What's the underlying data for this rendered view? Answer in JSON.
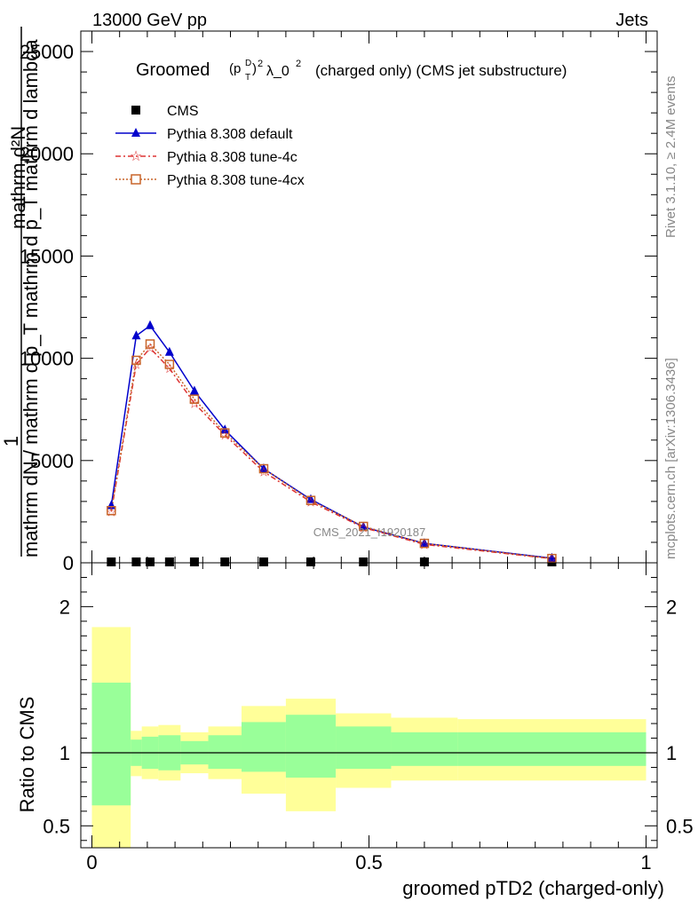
{
  "header": {
    "energy_label": "13000 GeV pp",
    "category_label": "Jets"
  },
  "plot_title": {
    "prefix": "Groomed",
    "mid": "λ_0",
    "suffix": "(charged only) (CMS jet substructure)"
  },
  "side_labels": {
    "rivet": "Rivet 3.1.10, ≥ 2.4M events",
    "mcplots": "mcplots.cern.ch [arXiv:1306.3436]"
  },
  "watermark": "CMS_2021_I1920187",
  "ylabel_main": {
    "line1": "1",
    "line2": "mathrm dN / mathrm d p_T mathrm d p_T mathrm d lambda",
    "line3": "mathrm d²N"
  },
  "ylabel_ratio": "Ratio to CMS",
  "xlabel": "groomed pTD2 (charged-only)",
  "colors": {
    "data": "#000000",
    "default": "#0000cc",
    "tune4c": "#dd3333",
    "tune4cx": "#c8652a",
    "band_inner": "#99ff99",
    "band_outer": "#ffff99"
  },
  "chart_data": [
    {
      "type": "line",
      "panel": "main",
      "xlim": [
        -0.02,
        1.02
      ],
      "ylim": [
        0,
        26000
      ],
      "x_ticks": [
        "0",
        "0.5",
        "1"
      ],
      "y_ticks": [
        "0",
        "5000",
        "10000",
        "15000",
        "20000",
        "25000"
      ],
      "y_tick_values": [
        0,
        5000,
        10000,
        15000,
        20000,
        25000
      ],
      "legend_position": "top-left",
      "series": [
        {
          "name": "CMS",
          "marker": "square",
          "x": [
            0.035,
            0.08,
            0.105,
            0.14,
            0.185,
            0.24,
            0.31,
            0.395,
            0.49,
            0.6,
            0.83
          ],
          "y": [
            0,
            0,
            0,
            0,
            0,
            0,
            0,
            0,
            0,
            0,
            0
          ]
        },
        {
          "name": "Pythia 8.308 default",
          "marker": "triangle",
          "x": [
            0.035,
            0.08,
            0.105,
            0.14,
            0.185,
            0.24,
            0.31,
            0.395,
            0.49,
            0.6,
            0.83
          ],
          "y": [
            2800,
            11100,
            11600,
            10300,
            8400,
            6500,
            4600,
            3100,
            1750,
            950,
            230
          ]
        },
        {
          "name": "Pythia 8.308 tune-4c",
          "marker": "star",
          "x": [
            0.035,
            0.08,
            0.105,
            0.14,
            0.185,
            0.24,
            0.31,
            0.395,
            0.49,
            0.6,
            0.83
          ],
          "y": [
            2500,
            9700,
            10500,
            9500,
            7800,
            6250,
            4450,
            2980,
            1720,
            900,
            200
          ]
        },
        {
          "name": "Pythia 8.308 tune-4cx",
          "marker": "open-square",
          "x": [
            0.035,
            0.08,
            0.105,
            0.14,
            0.185,
            0.24,
            0.31,
            0.395,
            0.49,
            0.6,
            0.83
          ],
          "y": [
            2550,
            9900,
            10700,
            9700,
            8000,
            6350,
            4600,
            3050,
            1780,
            950,
            210
          ]
        }
      ]
    },
    {
      "type": "area",
      "panel": "ratio",
      "xlim": [
        -0.02,
        1.02
      ],
      "ylim": [
        0.35,
        2.3
      ],
      "x_ticks": [
        "0",
        "0.5",
        "1"
      ],
      "y_ticks": [
        "0.5",
        "1",
        "2"
      ],
      "y_tick_values": [
        0.5,
        1,
        2
      ],
      "reference_line": 1,
      "bins": [
        {
          "x0": 0.0,
          "x1": 0.07,
          "inner": [
            0.64,
            1.48
          ],
          "outer": [
            0.35,
            1.86
          ]
        },
        {
          "x0": 0.07,
          "x1": 0.09,
          "inner": [
            0.91,
            1.09
          ],
          "outer": [
            0.84,
            1.15
          ]
        },
        {
          "x0": 0.09,
          "x1": 0.12,
          "inner": [
            0.89,
            1.11
          ],
          "outer": [
            0.82,
            1.18
          ]
        },
        {
          "x0": 0.12,
          "x1": 0.16,
          "inner": [
            0.88,
            1.12
          ],
          "outer": [
            0.81,
            1.19
          ]
        },
        {
          "x0": 0.16,
          "x1": 0.21,
          "inner": [
            0.92,
            1.08
          ],
          "outer": [
            0.86,
            1.14
          ]
        },
        {
          "x0": 0.21,
          "x1": 0.27,
          "inner": [
            0.89,
            1.12
          ],
          "outer": [
            0.82,
            1.18
          ]
        },
        {
          "x0": 0.27,
          "x1": 0.35,
          "inner": [
            0.87,
            1.21
          ],
          "outer": [
            0.72,
            1.32
          ]
        },
        {
          "x0": 0.35,
          "x1": 0.44,
          "inner": [
            0.83,
            1.26
          ],
          "outer": [
            0.6,
            1.37
          ]
        },
        {
          "x0": 0.44,
          "x1": 0.54,
          "inner": [
            0.89,
            1.18
          ],
          "outer": [
            0.76,
            1.27
          ]
        },
        {
          "x0": 0.54,
          "x1": 0.66,
          "inner": [
            0.91,
            1.14
          ],
          "outer": [
            0.81,
            1.24
          ]
        },
        {
          "x0": 0.66,
          "x1": 1.0,
          "inner": [
            0.91,
            1.14
          ],
          "outer": [
            0.81,
            1.23
          ]
        }
      ]
    }
  ]
}
